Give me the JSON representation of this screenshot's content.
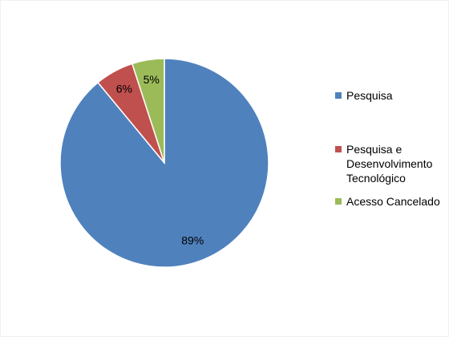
{
  "chart_data": {
    "type": "pie",
    "categories": [
      "Pesquisa",
      "Pesquisa e Desenvolvimento Tecnológico",
      "Acesso Cancelado"
    ],
    "values": [
      89,
      6,
      5
    ],
    "value_labels": [
      "89%",
      "6%",
      "5%"
    ],
    "colors": [
      "#4f81bd",
      "#c0504d",
      "#9bbb59"
    ],
    "legend": "right"
  }
}
